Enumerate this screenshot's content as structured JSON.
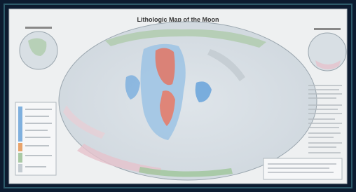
{
  "title": "Lithologic Map of the Moon"
}
